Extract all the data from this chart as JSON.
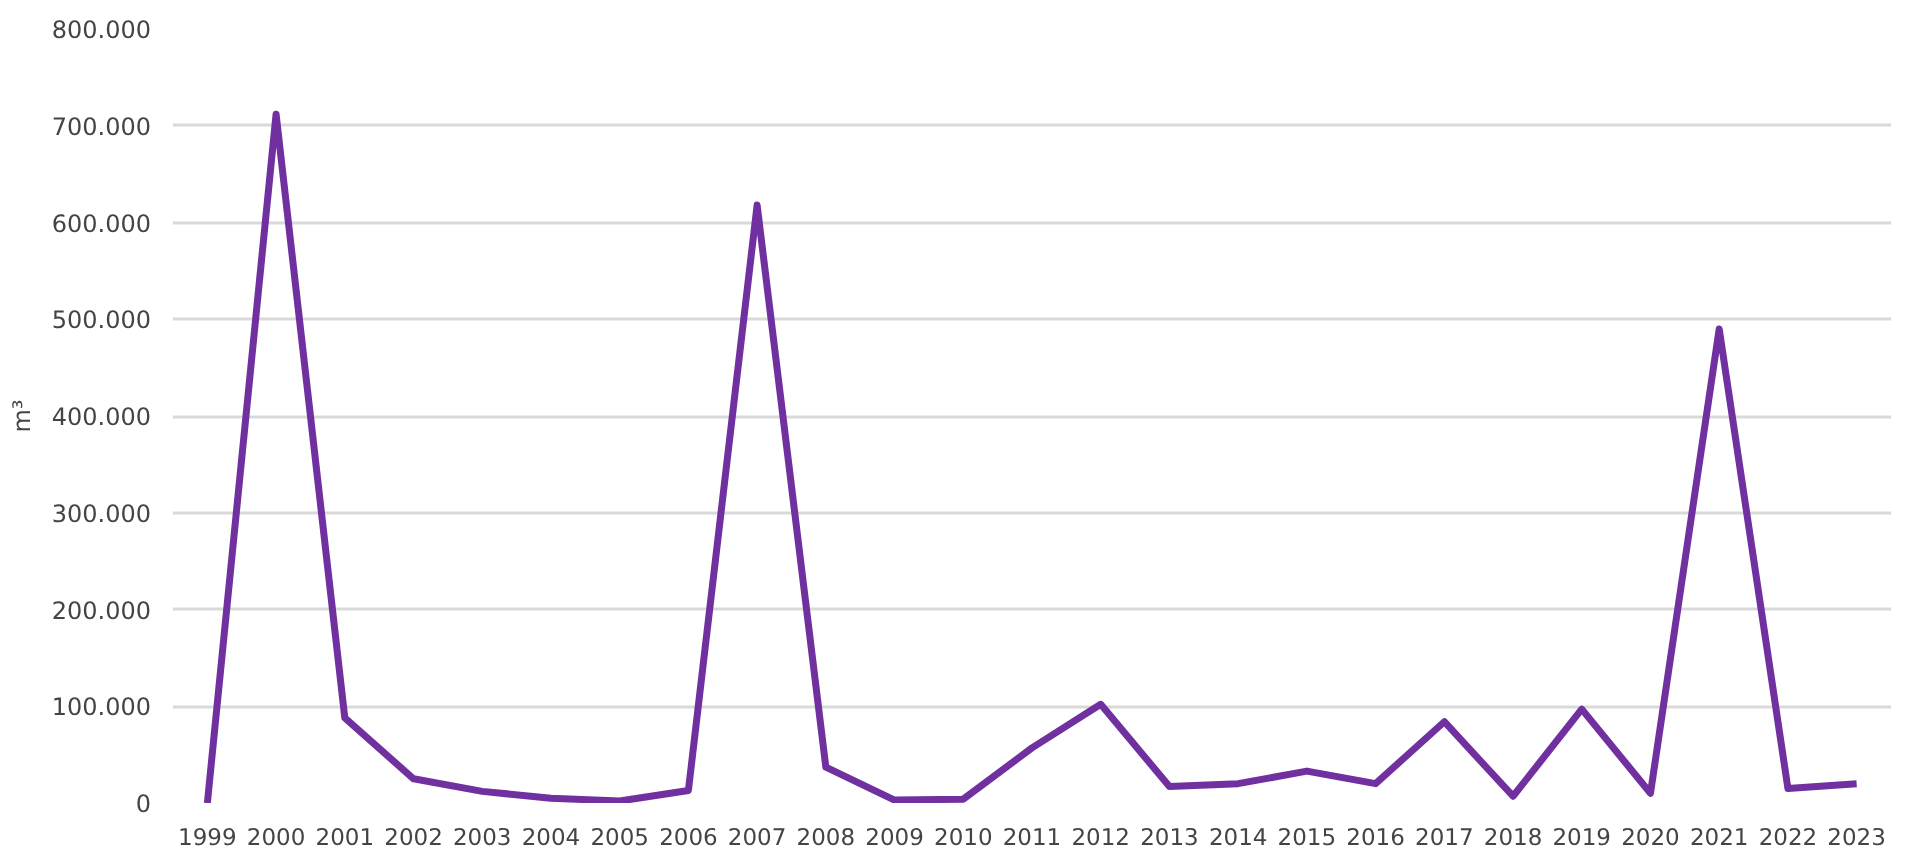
{
  "chart_data": {
    "type": "line",
    "ylabel": "m³",
    "categories": [
      "1999",
      "2000",
      "2001",
      "2002",
      "2003",
      "2004",
      "2005",
      "2006",
      "2007",
      "2008",
      "2009",
      "2010",
      "2011",
      "2012",
      "2013",
      "2014",
      "2015",
      "2016",
      "2017",
      "2018",
      "2019",
      "2020",
      "2021",
      "2022",
      "2023"
    ],
    "series": [
      {
        "color": "#7030a0",
        "values": [
          0,
          712000,
          88000,
          25000,
          12000,
          5000,
          2000,
          13000,
          618000,
          37000,
          3000,
          4000,
          57000,
          102000,
          17000,
          20000,
          33000,
          20000,
          84000,
          7000,
          97000,
          10000,
          490000,
          15000,
          20000
        ]
      }
    ],
    "ylim": [
      0,
      800000
    ],
    "yticks": [
      {
        "value": 0,
        "label": "0"
      },
      {
        "value": 100000,
        "label": "100.000"
      },
      {
        "value": 200000,
        "label": "200.000"
      },
      {
        "value": 300000,
        "label": "300.000"
      },
      {
        "value": 400000,
        "label": "400.000"
      },
      {
        "value": 500000,
        "label": "500.000"
      },
      {
        "value": 600000,
        "label": "600.000"
      },
      {
        "value": 700000,
        "label": "700.000"
      },
      {
        "value": 800000,
        "label": "800.000"
      }
    ],
    "grid": "y",
    "marker": "none",
    "line_style": "solid"
  }
}
